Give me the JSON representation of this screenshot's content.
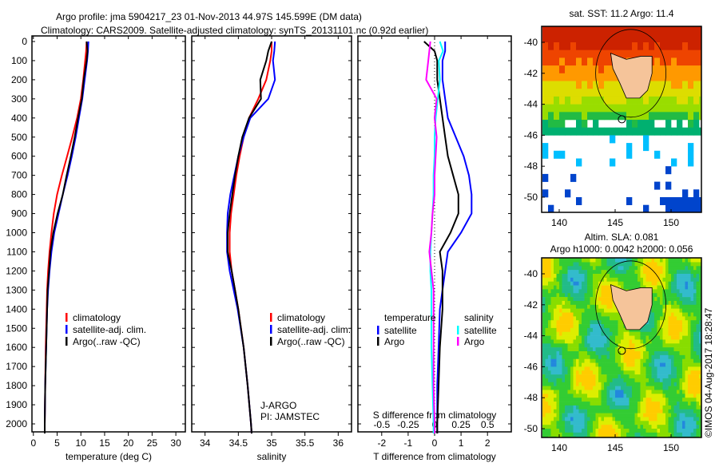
{
  "chart_data": {
    "type": "line",
    "title": [
      "Argo profile: jma 5904217_23 01-Nov-2013 44.97S 145.599E (DM data)",
      "Climatology: CARS2009. Satellite-adjusted climatology: synTS_20131101.nc (0.92d earlier)"
    ],
    "depth_ticks": [
      0,
      100,
      200,
      300,
      400,
      500,
      600,
      700,
      800,
      900,
      1000,
      1100,
      1200,
      1300,
      1400,
      1500,
      1600,
      1700,
      1800,
      1900,
      2000
    ],
    "ylim": [
      0,
      2060
    ],
    "depth": [
      0,
      50,
      100,
      200,
      300,
      400,
      500,
      600,
      700,
      800,
      900,
      1000,
      1100,
      1200,
      1300,
      1400,
      1600,
      1800,
      2000,
      2050
    ],
    "panels": [
      {
        "xlabel": "temperature (deg C)",
        "xlim": [
          -0.3,
          32
        ],
        "xticks": [
          0,
          5,
          10,
          15,
          20,
          25,
          30
        ],
        "series": [
          {
            "name": "climatology",
            "color": "#ff0000",
            "values": [
              11.2,
              11.1,
              10.9,
              10.5,
              10.0,
              9.2,
              8.2,
              7.1,
              6.0,
              5.0,
              4.3,
              3.8,
              3.4,
              3.1,
              2.9,
              2.8,
              2.6,
              2.5,
              2.4,
              2.4
            ]
          },
          {
            "name": "satellite-adj. clim.",
            "color": "#0000ff",
            "values": [
              11.6,
              11.5,
              11.3,
              10.8,
              10.3,
              9.6,
              8.9,
              8.1,
              7.2,
              6.2,
              5.3,
              4.4,
              3.8,
              3.4,
              3.1,
              2.9,
              2.7,
              2.5,
              2.4,
              2.4
            ]
          },
          {
            "name": "Argo(..raw -QC)",
            "color": "#000000",
            "values": [
              11.2,
              11.4,
              11.2,
              10.6,
              10.2,
              9.4,
              8.7,
              7.9,
              7.0,
              6.2,
              5.1,
              4.2,
              3.6,
              3.3,
              3.0,
              2.9,
              2.7,
              2.5,
              2.4,
              2.4
            ]
          }
        ],
        "legend": [
          "climatology",
          "satellite-adj. clim.",
          "Argo(..raw -QC)"
        ]
      },
      {
        "xlabel": "salinity",
        "xlim": [
          33.8,
          36.2
        ],
        "xticks": [
          34,
          34.5,
          35,
          35.5,
          36
        ],
        "series": [
          {
            "name": "climatology",
            "color": "#ff0000",
            "values": [
              35.0,
              35.0,
              34.98,
              34.92,
              34.8,
              34.66,
              34.58,
              34.52,
              34.47,
              34.43,
              34.39,
              34.37,
              34.37,
              34.4,
              34.45,
              34.5,
              34.58,
              34.64,
              34.69,
              34.7
            ]
          },
          {
            "name": "satellite-adj. clim.",
            "color": "#0000ff",
            "values": [
              35.05,
              35.04,
              35.02,
              35.05,
              34.95,
              34.68,
              34.58,
              34.5,
              34.44,
              34.38,
              34.34,
              34.33,
              34.33,
              34.37,
              34.43,
              34.49,
              34.58,
              34.64,
              34.69,
              34.7
            ]
          },
          {
            "name": "Argo(..raw -QC)",
            "color": "#000000",
            "values": [
              35.0,
              34.95,
              34.92,
              34.83,
              34.84,
              34.66,
              34.56,
              34.5,
              34.45,
              34.41,
              34.37,
              34.34,
              34.34,
              34.4,
              34.45,
              34.5,
              34.58,
              34.64,
              34.69,
              34.7
            ]
          }
        ],
        "legend": [
          "climatology",
          "satellite-adj. clim.",
          "Argo(..raw -QC)"
        ],
        "annotation": [
          "J-ARGO",
          "PI: JAMSTEC"
        ]
      },
      {
        "xlabel": "T difference from climatology",
        "xlim": [
          -2.9,
          2.9
        ],
        "xticks": [
          -2,
          -1,
          0,
          1,
          2
        ],
        "x2label": "S difference from climatology",
        "x2ticks": [
          "-0.5",
          "-0.25",
          "0",
          "0.25",
          "0.5"
        ],
        "series": [
          {
            "name": "temperature satellite",
            "color": "#0000ff",
            "axis": "T",
            "values": [
              0.4,
              0.4,
              0.3,
              0.3,
              0.4,
              0.5,
              0.8,
              1.1,
              1.3,
              1.4,
              1.4,
              1.0,
              0.5,
              0.4,
              0.3,
              0.2,
              0.15,
              0.1,
              0.1,
              0.1
            ]
          },
          {
            "name": "temperature Argo",
            "color": "#000000",
            "axis": "T",
            "values": [
              -0.4,
              0.0,
              0.1,
              0.1,
              0.2,
              0.3,
              0.4,
              0.5,
              0.7,
              0.9,
              0.9,
              0.6,
              0.2,
              0.3,
              0.3,
              0.3,
              0.2,
              0.15,
              0.1,
              0.1
            ]
          },
          {
            "name": "salinity satellite",
            "color": "#00ffff",
            "axis": "S",
            "values": [
              0.05,
              0.08,
              0.04,
              0.05,
              0.03,
              0.01,
              0.0,
              0.0,
              -0.01,
              -0.01,
              -0.02,
              -0.03,
              -0.04,
              -0.04,
              -0.03,
              -0.03,
              -0.03,
              -0.02,
              -0.01,
              -0.01
            ]
          },
          {
            "name": "salinity Argo",
            "color": "#ff00ff",
            "axis": "S",
            "values": [
              -0.04,
              -0.05,
              -0.06,
              -0.08,
              0.02,
              0.0,
              0.02,
              0.01,
              0.0,
              0.0,
              -0.02,
              -0.03,
              -0.05,
              -0.03,
              -0.01,
              -0.01,
              -0.01,
              -0.01,
              0.0,
              0.0
            ]
          }
        ],
        "legend": {
          "temperature_title": "temperature",
          "salinity_title": "salinity",
          "satellite": "satellite",
          "argo": "Argo"
        }
      }
    ],
    "maps": [
      {
        "title": "sat. SST: 11.2 Argo: 11.4",
        "kind": "sst"
      },
      {
        "title": [
          "Altim. SLA: 0.081",
          "Argo h1000: 0.0042 h2000: 0.056"
        ],
        "kind": "sla"
      }
    ],
    "map_lat_ticks": [
      -40,
      -42,
      -44,
      -46,
      -48,
      -50
    ],
    "map_lon_ticks": [
      140,
      145,
      150
    ],
    "argo_position": {
      "lon": 145.599,
      "lat": -44.97
    },
    "credit": "©IMOS 04-Aug-2017 18:28:47"
  }
}
